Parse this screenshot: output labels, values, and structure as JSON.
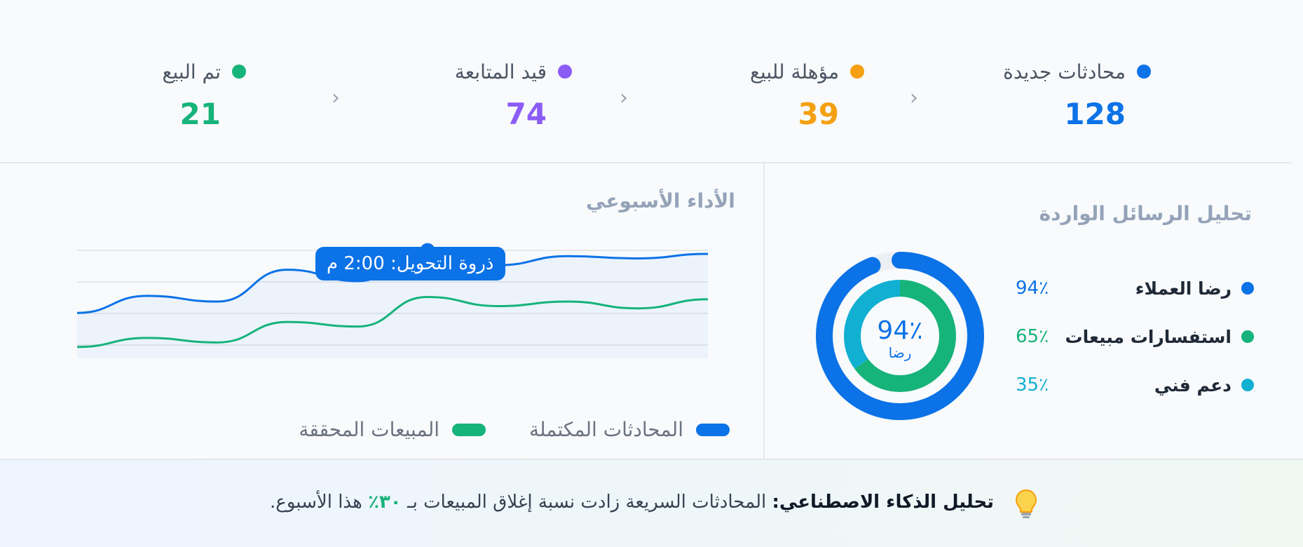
{
  "funnel": {
    "stages": [
      {
        "label": "محادثات جديدة",
        "count": "128",
        "color": "#0b72e7"
      },
      {
        "label": "مؤهلة للبيع",
        "count": "39",
        "color": "#f5a012"
      },
      {
        "label": "قيد المتابعة",
        "count": "74",
        "color": "#8b5cf6"
      },
      {
        "label": "تم البيع",
        "count": "21",
        "color": "#16b37a"
      }
    ],
    "chevron": "‹"
  },
  "performance": {
    "title": "الأداء الأسبوعي",
    "tooltip": "ذروة التحويل: 2:00 م",
    "legend": [
      {
        "label": "المحادثات المكتملة",
        "color": "#0b72e7"
      },
      {
        "label": "المبيعات المحققة",
        "color": "#16b37a"
      }
    ]
  },
  "chart_data": {
    "type": "line",
    "title": "الأداء الأسبوعي",
    "xlabel": "",
    "ylabel": "",
    "grid": true,
    "legend_position": "bottom",
    "x": [
      0,
      1,
      2,
      3,
      4,
      5,
      6,
      7,
      8,
      9
    ],
    "series": [
      {
        "name": "المحادثات المكتملة",
        "color": "#0b72e7",
        "values": [
          40,
          55,
          50,
          78,
          68,
          95,
          82,
          90,
          88,
          92
        ]
      },
      {
        "name": "المبيعات المحققة",
        "color": "#16b37a",
        "values": [
          10,
          18,
          14,
          32,
          28,
          54,
          46,
          50,
          44,
          52
        ]
      }
    ],
    "ylim": [
      0,
      100
    ],
    "annotations": [
      {
        "text": "ذروة التحويل: 2:00 م",
        "series": 0,
        "index": 5
      }
    ]
  },
  "analysis": {
    "title": "تحليل الرسائل الواردة",
    "donut": {
      "value": "94٪",
      "label": "رضا",
      "outer_fraction": 0.94,
      "inner_fraction": 0.65,
      "inner_secondary_fraction": 0.35,
      "outer_color": "#0b72e7",
      "inner_color": "#16b37a",
      "inner_secondary_color": "#11b0d2",
      "track_color": "#eceff3"
    },
    "metrics": [
      {
        "name": "رضا العملاء",
        "value": "94٪",
        "color": "#0b72e7"
      },
      {
        "name": "استفسارات مبيعات",
        "value": "65٪",
        "color": "#16b37a"
      },
      {
        "name": "دعم فني",
        "value": "35٪",
        "color": "#11b0d2"
      }
    ]
  },
  "insight": {
    "icon": "lightbulb-icon",
    "title": "تحليل الذكاء الاصطناعي:",
    "text_before": "المحادثات السريعة زادت نسبة إغلاق المبيعات بـ",
    "percent": "٣٠٪",
    "text_after": "هذا الأسبوع."
  }
}
